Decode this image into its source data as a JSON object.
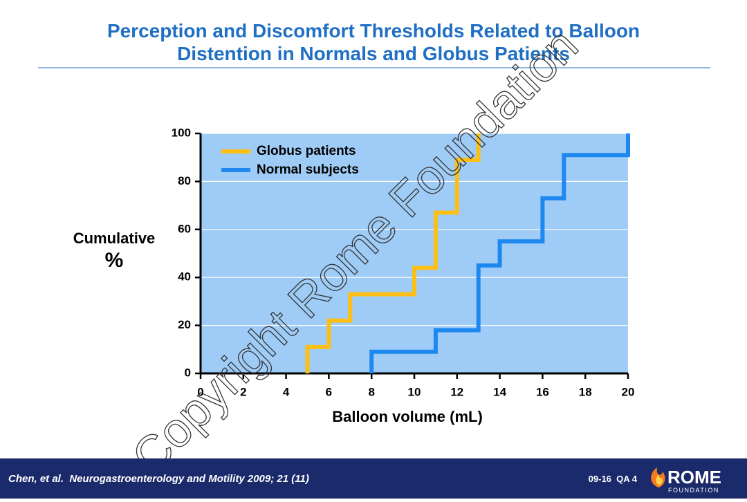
{
  "header": {
    "title_lines": [
      "Perception and Discomfort Thresholds Related to Balloon",
      "Distention in Normals and Globus Patients"
    ]
  },
  "chart_data": {
    "type": "line",
    "step": true,
    "xlabel": "Balloon volume (mL)",
    "ylabel_lines": [
      "Cumulative",
      "%"
    ],
    "xlim": [
      0,
      20
    ],
    "xticks": [
      0,
      2,
      4,
      6,
      8,
      10,
      12,
      14,
      16,
      18,
      20
    ],
    "ylim": [
      0,
      100
    ],
    "yticks": [
      0,
      20,
      40,
      60,
      80,
      100
    ],
    "grid": true,
    "legend": "upper left",
    "background": "#9fccf6",
    "series": [
      {
        "name": "Globus patients",
        "color": "#fdbf16",
        "x": [
          5,
          5,
          6,
          6,
          7,
          7,
          10,
          10,
          11,
          11,
          12,
          12,
          13,
          13
        ],
        "values": [
          0,
          11,
          11,
          22,
          22,
          33,
          33,
          44,
          44,
          67,
          67,
          89,
          89,
          100
        ]
      },
      {
        "name": "Normal subjects",
        "color": "#1e88f0",
        "x": [
          8,
          8,
          11,
          11,
          13,
          13,
          14,
          14,
          16,
          16,
          17,
          17,
          20,
          20
        ],
        "values": [
          0,
          9,
          9,
          18,
          18,
          45,
          45,
          55,
          55,
          73,
          73,
          91,
          91,
          100
        ]
      }
    ]
  },
  "watermark": "Copyright Rome Foundation",
  "footer": {
    "citation": "Chen, et al.  Neurogastroenterology and Motility 2009; 21 (11)",
    "code": "09-16  QA 4",
    "logo_main": "ROME",
    "logo_sub": "FOUNDATION"
  }
}
